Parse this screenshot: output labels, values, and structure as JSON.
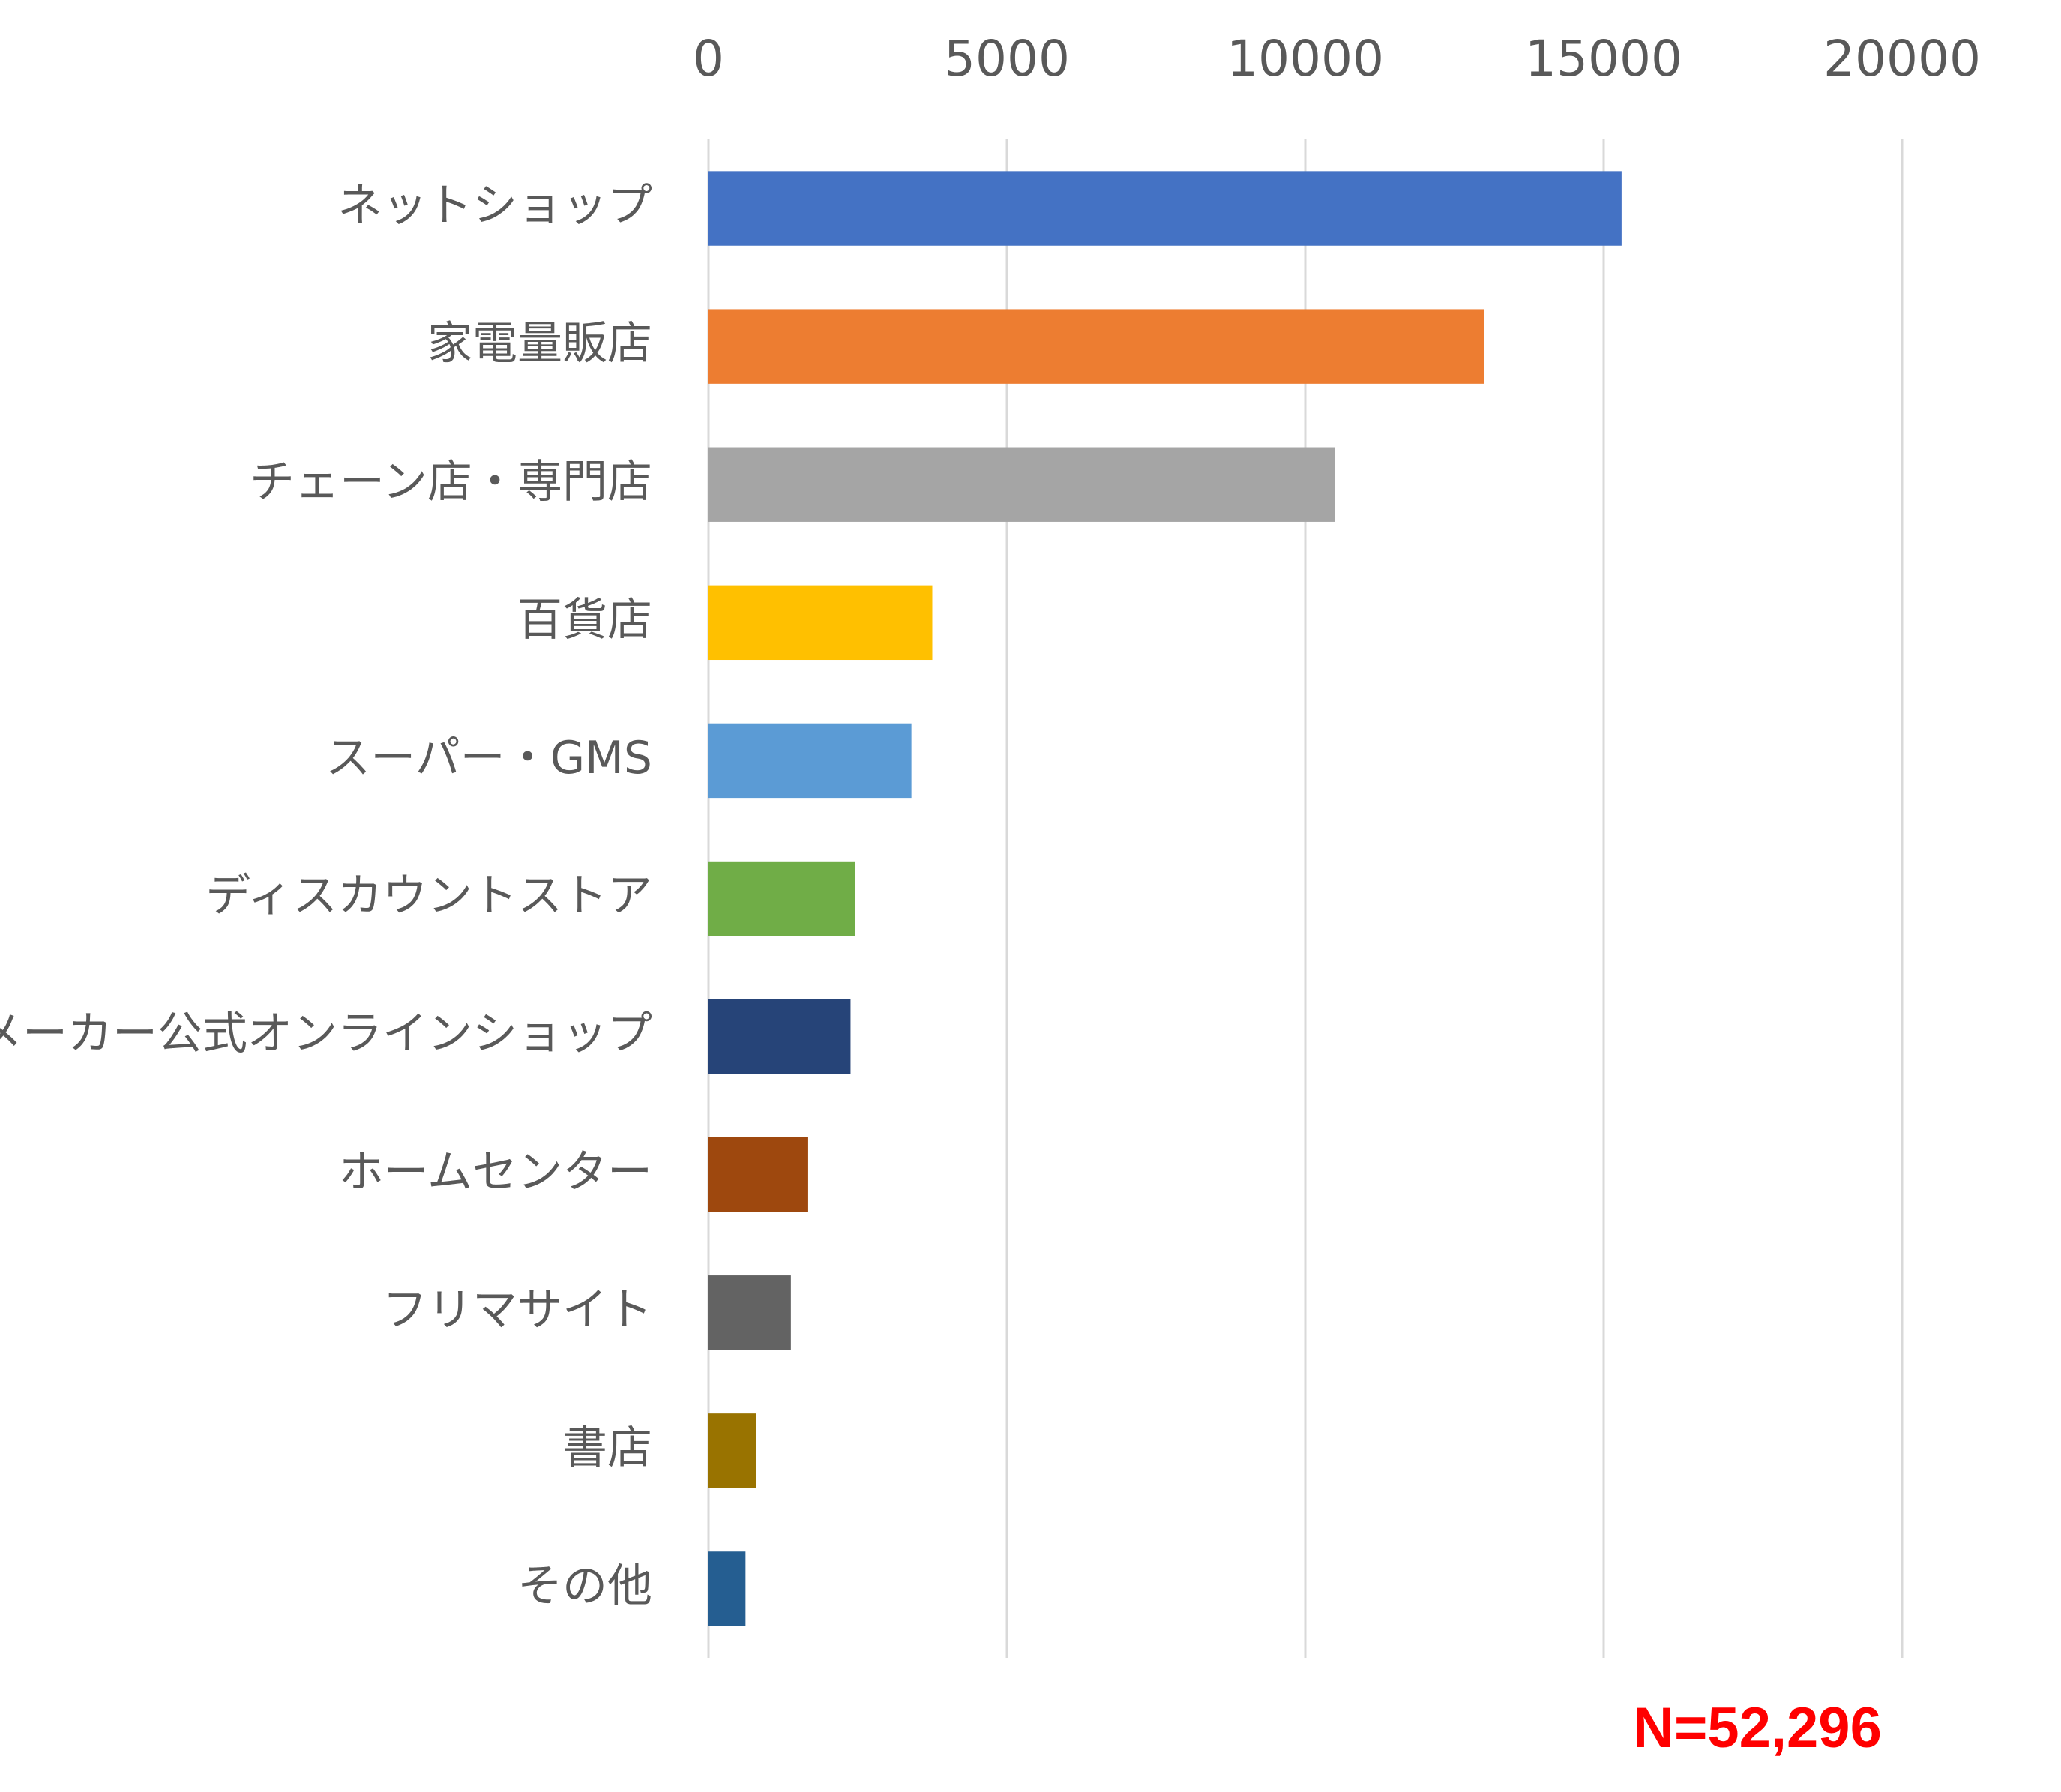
{
  "chart_data": {
    "type": "bar",
    "orientation": "horizontal",
    "categories": [
      "ネットショップ",
      "家電量販店",
      "チェーン店・専門店",
      "百貨店",
      "スーパー・GMS",
      "ディスカウントストア",
      "メーカー公式オンラインショップ",
      "ホームセンター",
      "フリマサイト",
      "書店",
      "その他"
    ],
    "values": [
      15300,
      13000,
      10500,
      3750,
      3400,
      2450,
      2380,
      1670,
      1380,
      800,
      620
    ],
    "colors": [
      "#4472c4",
      "#ed7d31",
      "#a5a5a5",
      "#ffc000",
      "#5b9bd5",
      "#70ad47",
      "#264478",
      "#9e480e",
      "#636363",
      "#997300",
      "#255e91"
    ],
    "xlim": [
      0,
      20000
    ],
    "xticks": [
      0,
      5000,
      10000,
      15000,
      20000
    ],
    "grid": true,
    "annotation": "N=52,296"
  }
}
